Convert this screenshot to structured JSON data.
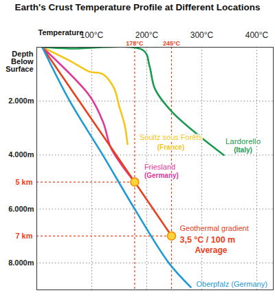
{
  "chart_data": {
    "type": "line",
    "title": "Earth's Crust Temperature Profile at Different Locations",
    "x_label": "Temperature",
    "y_label": "Depth Below Surface",
    "xlim": [
      0,
      430
    ],
    "ylim": [
      0,
      9000
    ],
    "xticks": [
      {
        "value": 100,
        "label": "100°C"
      },
      {
        "value": 200,
        "label": "200°C"
      },
      {
        "value": 300,
        "label": "300°C"
      },
      {
        "value": 400,
        "label": "400°C"
      }
    ],
    "yticks": [
      {
        "value": 2000,
        "label": "2.000m"
      },
      {
        "value": 4000,
        "label": "4.000m"
      },
      {
        "value": 6000,
        "label": "6.000m"
      },
      {
        "value": 8000,
        "label": "8.000m"
      }
    ],
    "grid": true,
    "vlines": [
      {
        "value": 178,
        "label": "178°C"
      },
      {
        "value": 245,
        "label": "245°C"
      }
    ],
    "hlines": [
      {
        "value": 5000,
        "label": "5 km"
      },
      {
        "value": 7000,
        "label": "7 km"
      }
    ],
    "highlight_points": [
      {
        "x": 178,
        "y": 5000
      },
      {
        "x": 245,
        "y": 7000
      }
    ],
    "series": [
      {
        "name": "Soultz sous Forêts",
        "sublabel": [
          "(France)"
        ],
        "color": "#f5c518",
        "line_style": "solid",
        "x": [
          10,
          60,
          95,
          120,
          140,
          150,
          160,
          165
        ],
        "y": [
          0,
          500,
          900,
          1000,
          1500,
          2200,
          2900,
          3600
        ]
      },
      {
        "name": "Lardorello",
        "sublabel": [
          "(Italy)"
        ],
        "color": "#1a9a50",
        "line_style": "solid",
        "x": [
          10,
          60,
          194,
          205,
          215,
          246,
          296,
          340
        ],
        "y": [
          0,
          50,
          120,
          700,
          1550,
          2400,
          3300,
          4000
        ]
      },
      {
        "name": "Friesland",
        "sublabel": [
          "(Germany)"
        ],
        "color": "#e0379a",
        "line_style": "solid",
        "x": [
          10,
          96,
          121,
          134,
          152,
          178
        ],
        "y": [
          0,
          1800,
          2800,
          3700,
          4300,
          5000
        ]
      },
      {
        "name": "Geothermal gradient",
        "sublabel": [
          "3,5 °C / 100 m",
          "Average"
        ],
        "color": "#e8401c",
        "line_style": "solid",
        "x": [
          10,
          178,
          245
        ],
        "y": [
          0,
          5000,
          7000
        ]
      },
      {
        "name": "Oberpfalz",
        "sublabel": [
          "(Germany)"
        ],
        "color": "#1e9ad6",
        "line_style": "solid",
        "x": [
          10,
          60,
          120,
          178,
          240,
          280
        ],
        "y": [
          0,
          2000,
          4000,
          6000,
          8000,
          8900
        ]
      }
    ]
  }
}
